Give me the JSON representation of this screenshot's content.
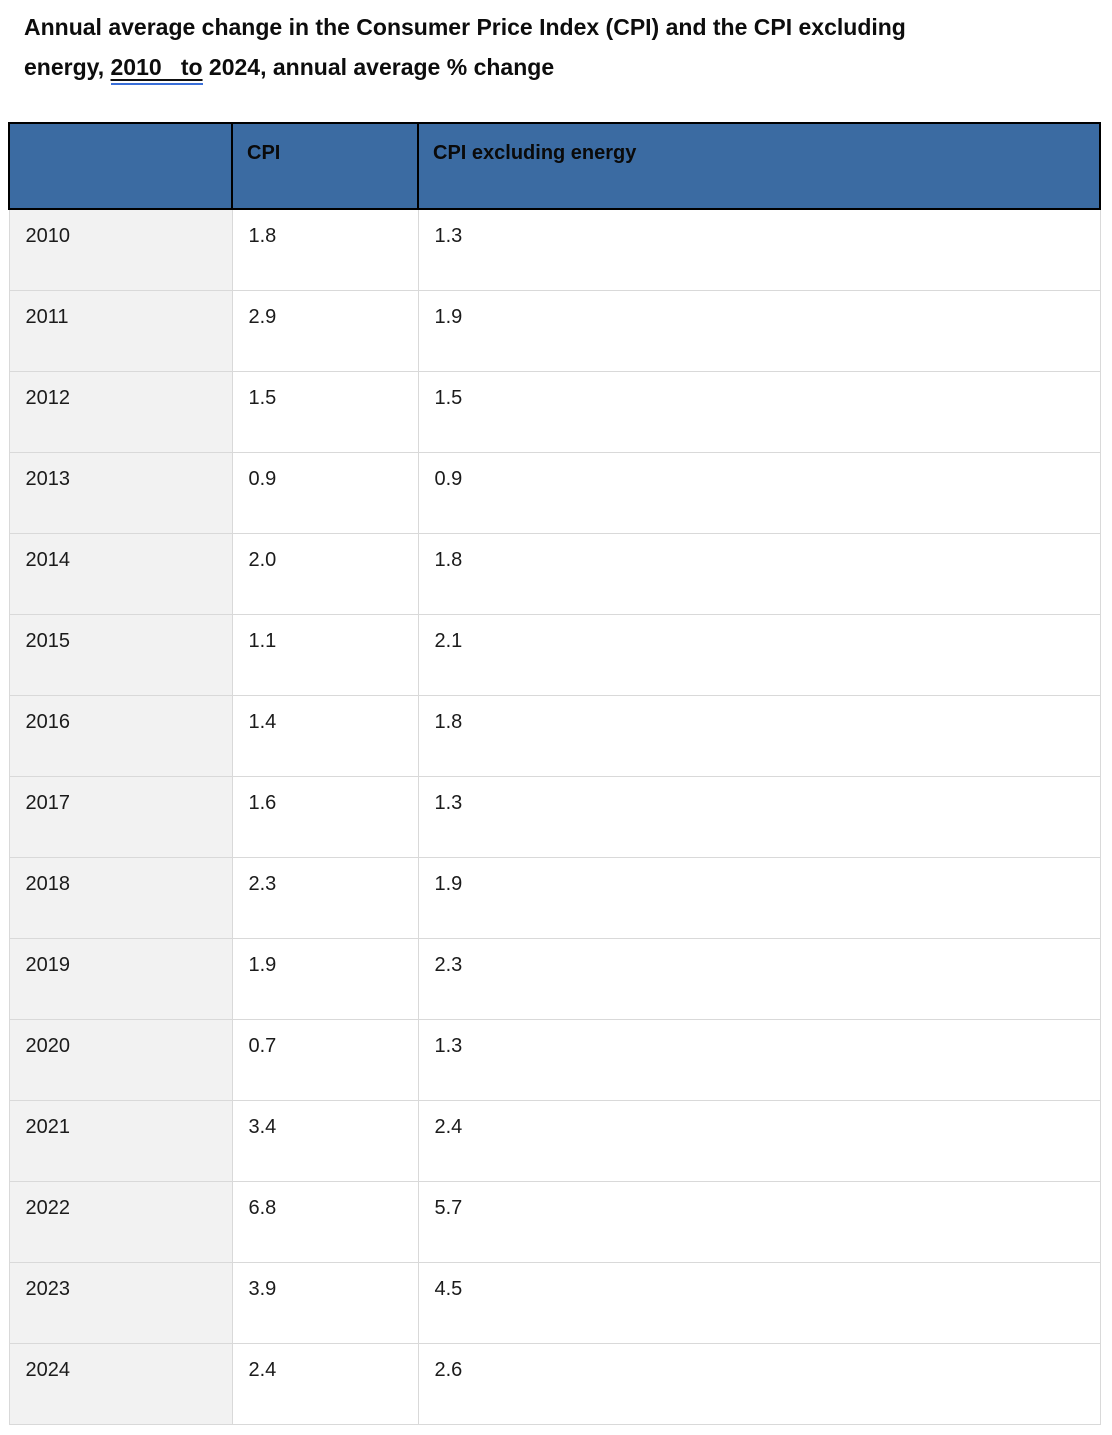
{
  "title": {
    "line1": "Annual average change in the Consumer Price Index (CPI) and the CPI excluding",
    "line2_prefix": "energy, ",
    "line2_underlined": "2010   to",
    "line2_suffix": " 2024, annual average % change"
  },
  "table": {
    "columns": [
      "",
      "CPI",
      "CPI excluding energy"
    ],
    "rows": [
      {
        "year": "2010",
        "cpi": "1.8",
        "cpi_excluding_energy": "1.3"
      },
      {
        "year": "2011",
        "cpi": "2.9",
        "cpi_excluding_energy": "1.9"
      },
      {
        "year": "2012",
        "cpi": "1.5",
        "cpi_excluding_energy": "1.5"
      },
      {
        "year": "2013",
        "cpi": "0.9",
        "cpi_excluding_energy": "0.9"
      },
      {
        "year": "2014",
        "cpi": "2.0",
        "cpi_excluding_energy": "1.8"
      },
      {
        "year": "2015",
        "cpi": "1.1",
        "cpi_excluding_energy": "2.1"
      },
      {
        "year": "2016",
        "cpi": "1.4",
        "cpi_excluding_energy": "1.8"
      },
      {
        "year": "2017",
        "cpi": "1.6",
        "cpi_excluding_energy": "1.3"
      },
      {
        "year": "2018",
        "cpi": "2.3",
        "cpi_excluding_energy": "1.9"
      },
      {
        "year": "2019",
        "cpi": "1.9",
        "cpi_excluding_energy": "2.3"
      },
      {
        "year": "2020",
        "cpi": "0.7",
        "cpi_excluding_energy": "1.3"
      },
      {
        "year": "2021",
        "cpi": "3.4",
        "cpi_excluding_energy": "2.4"
      },
      {
        "year": "2022",
        "cpi": "6.8",
        "cpi_excluding_energy": "5.7"
      },
      {
        "year": "2023",
        "cpi": "3.9",
        "cpi_excluding_energy": "4.5"
      },
      {
        "year": "2024",
        "cpi": "2.4",
        "cpi_excluding_energy": "2.6"
      }
    ]
  },
  "colors": {
    "header_background": "#3b6ba2",
    "header_border": "#000000",
    "body_border": "#d9d9d9",
    "year_column_background": "#f2f2f2",
    "edit_underline_blue": "#3a6fd8",
    "text": "#1b1b1b"
  },
  "chart_data": {
    "type": "table",
    "title": "Annual average change in the Consumer Price Index (CPI) and the CPI excluding energy, 2010 to 2024, annual average % change",
    "categories": [
      "2010",
      "2011",
      "2012",
      "2013",
      "2014",
      "2015",
      "2016",
      "2017",
      "2018",
      "2019",
      "2020",
      "2021",
      "2022",
      "2023",
      "2024"
    ],
    "series": [
      {
        "name": "CPI",
        "values": [
          1.8,
          2.9,
          1.5,
          0.9,
          2.0,
          1.1,
          1.4,
          1.6,
          2.3,
          1.9,
          0.7,
          3.4,
          6.8,
          3.9,
          2.4
        ]
      },
      {
        "name": "CPI excluding energy",
        "values": [
          1.3,
          1.9,
          1.5,
          0.9,
          1.8,
          2.1,
          1.8,
          1.3,
          1.9,
          2.3,
          1.3,
          2.4,
          5.7,
          4.5,
          2.6
        ]
      }
    ]
  }
}
